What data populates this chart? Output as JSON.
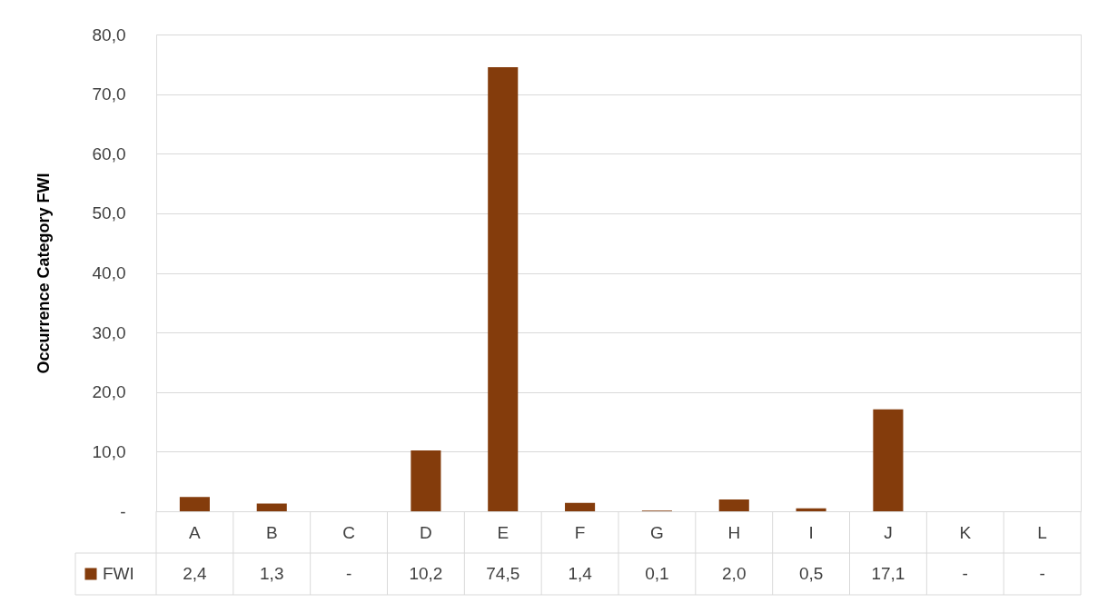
{
  "chart_data": {
    "type": "bar",
    "ylabel": "Occurrence Category FWI",
    "categories": [
      "A",
      "B",
      "C",
      "D",
      "E",
      "F",
      "G",
      "H",
      "I",
      "J",
      "K",
      "L"
    ],
    "series": [
      {
        "name": "FWI",
        "color": "#843c0c",
        "values": [
          2.4,
          1.3,
          0,
          10.2,
          74.5,
          1.4,
          0.1,
          2.0,
          0.5,
          17.1,
          0,
          0
        ],
        "value_labels": [
          "2,4",
          "1,3",
          "-",
          "10,2",
          "74,5",
          "1,4",
          "0,1",
          "2,0",
          "0,5",
          "17,1",
          "-",
          "-"
        ]
      }
    ],
    "ylim": [
      0,
      80
    ],
    "yticks": [
      {
        "value": 0,
        "label": "-"
      },
      {
        "value": 10,
        "label": "10,0"
      },
      {
        "value": 20,
        "label": "20,0"
      },
      {
        "value": 30,
        "label": "30,0"
      },
      {
        "value": 40,
        "label": "40,0"
      },
      {
        "value": 50,
        "label": "50,0"
      },
      {
        "value": 60,
        "label": "60,0"
      },
      {
        "value": 70,
        "label": "70,0"
      },
      {
        "value": 80,
        "label": "80,0"
      }
    ],
    "grid": "y",
    "legend": "bottom left"
  }
}
